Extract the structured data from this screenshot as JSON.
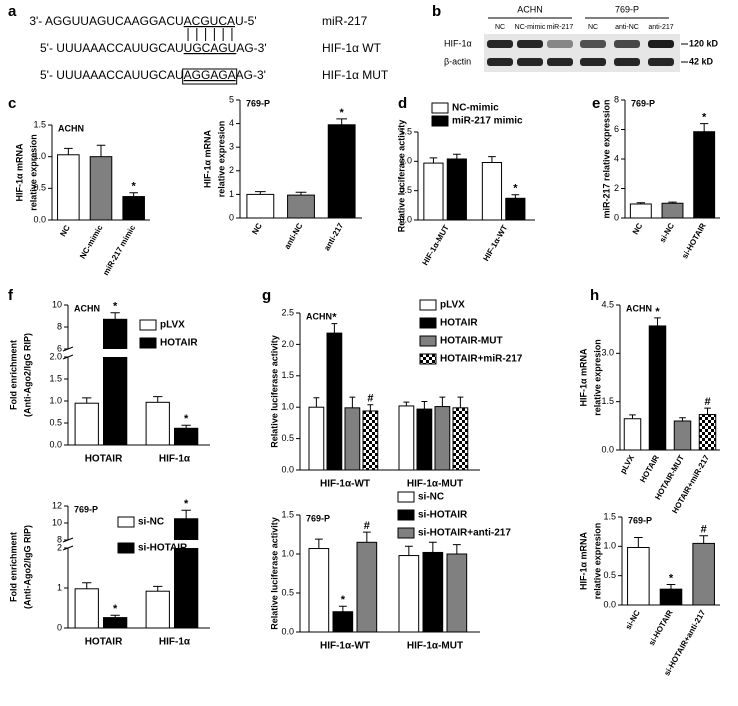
{
  "panel_labels": [
    "a",
    "b",
    "c",
    "d",
    "e",
    "f",
    "g",
    "h"
  ],
  "sequences": [
    {
      "prefix": "3'- AGGUUAGUCAAGGACU",
      "motif": "ACGUCA",
      "suffix": "U-5'",
      "label": "miR-217"
    },
    {
      "prefix": "5'- UUUAAACCAUUGCAU",
      "motif": "UGCAGU",
      "suffix": "AG-3'",
      "label": "HIF-1α WT"
    },
    {
      "prefix": "5'- UUUAAACCAUUGCAU",
      "motif": "AGGAGA",
      "suffix": "AG-3'",
      "label": "HIF-1α MUT"
    }
  ],
  "blot": {
    "groups": [
      "ACHN",
      "769-P"
    ],
    "lanes": [
      "NC",
      "NC-mimic",
      "miR-217",
      "NC",
      "anti-NC",
      "anti-217"
    ],
    "rows": [
      {
        "name": "HIF-1α",
        "size": "120 kD"
      },
      {
        "name": "β-actin",
        "size": "42 kD"
      }
    ]
  },
  "chart_data": [
    {
      "type": "bar",
      "title": "ACHN",
      "ylabel": [
        "HIF-1α mRNA",
        "relative expresion"
      ],
      "categories": [
        "NC",
        "NC-mimic",
        "miR-217 mimic"
      ],
      "values": [
        1.03,
        1.0,
        0.37
      ],
      "errors": [
        0.1,
        0.18,
        0.06
      ],
      "colors": [
        "#ffffff",
        "#808080",
        "#000000"
      ],
      "markers": [
        null,
        null,
        "*"
      ],
      "ylim": [
        0,
        1.5
      ],
      "yticks": [
        {
          "value": 0,
          "label": "0.0"
        },
        0.5,
        {
          "value": 1,
          "label": "1.0"
        },
        1.5
      ]
    },
    {
      "type": "bar",
      "title": "769-P",
      "ylabel": [
        "HIF-1α mRNA",
        "relative expresion"
      ],
      "categories": [
        "NC",
        "anti-NC",
        "anti-217"
      ],
      "values": [
        1.0,
        0.97,
        3.95
      ],
      "errors": [
        0.12,
        0.12,
        0.25
      ],
      "colors": [
        "#ffffff",
        "#808080",
        "#000000"
      ],
      "markers": [
        null,
        null,
        "*"
      ],
      "ylim": [
        0,
        5
      ],
      "yticks": [
        0,
        1,
        2,
        3,
        4,
        5
      ]
    },
    {
      "type": "bar",
      "ylabel": [
        "Relative luciferase activity"
      ],
      "categories": [
        "HIF-1α-MUT",
        "HIF-1α-WT"
      ],
      "series": [
        {
          "name": "NC-mimic",
          "color": "#ffffff",
          "values": [
            0.97,
            0.98
          ],
          "errors": [
            0.09,
            0.1
          ]
        },
        {
          "name": "miR-217 mimic",
          "color": "#000000",
          "values": [
            1.04,
            0.37
          ],
          "errors": [
            0.08,
            0.06
          ],
          "markers": [
            null,
            "*"
          ]
        }
      ],
      "ylim": [
        0,
        1.5
      ],
      "yticks": [
        {
          "value": 0,
          "label": "0.0"
        },
        0.5,
        {
          "value": 1,
          "label": "1.0"
        },
        1.5
      ]
    },
    {
      "type": "bar",
      "title": "769-P",
      "ylabel": [
        "miR-217 relative expression"
      ],
      "categories": [
        "NC",
        "si-NC",
        "si-HOTAIR"
      ],
      "values": [
        0.95,
        1.0,
        5.85
      ],
      "errors": [
        0.08,
        0.08,
        0.55
      ],
      "colors": [
        "#ffffff",
        "#808080",
        "#000000"
      ],
      "markers": [
        null,
        null,
        "*"
      ],
      "ylim": [
        0,
        8
      ],
      "yticks": [
        0,
        2,
        4,
        6,
        8
      ]
    },
    {
      "type": "bar",
      "title": "ACHN",
      "ylabel": [
        "Fold enrichment",
        "(Anti-Ago2/IgG RIP)"
      ],
      "categories": [
        "HOTAIR",
        "HIF-1α"
      ],
      "series": [
        {
          "name": "pLVX",
          "color": "#ffffff",
          "values": [
            0.95,
            0.97
          ],
          "errors": [
            0.12,
            0.13
          ]
        },
        {
          "name": "HOTAIR",
          "color": "#000000",
          "values": [
            8.7,
            0.38
          ],
          "errors": [
            0.6,
            0.07
          ],
          "markers": [
            "*",
            "*"
          ]
        }
      ],
      "ylim": [
        0,
        10
      ],
      "ybreak": [
        2,
        6
      ],
      "yticks": [
        {
          "value": 0,
          "label": "0.0"
        },
        0.5,
        {
          "value": 1,
          "label": "1.0"
        },
        1.5,
        {
          "value": 2,
          "label": "2.0"
        },
        6,
        8,
        10
      ]
    },
    {
      "type": "bar",
      "title": "769-P",
      "ylabel": [
        "Fold enrichment",
        "(Anti-Ago2/IgG RIP)"
      ],
      "categories": [
        "HOTAIR",
        "HIF-1α"
      ],
      "series": [
        {
          "name": "si-NC",
          "color": "#ffffff",
          "values": [
            0.98,
            0.92
          ],
          "errors": [
            0.15,
            0.12
          ]
        },
        {
          "name": "si-HOTAIR",
          "color": "#000000",
          "values": [
            0.26,
            10.5
          ],
          "errors": [
            0.06,
            1.0
          ],
          "markers": [
            "*",
            "*"
          ]
        }
      ],
      "ylim": [
        0,
        12
      ],
      "ybreak": [
        2,
        8
      ],
      "yticks": [
        0,
        1,
        2,
        8,
        10,
        12
      ]
    },
    {
      "type": "bar",
      "title": "ACHN",
      "ylabel": [
        "Relative luciferase activity"
      ],
      "categories": [
        "HIF-1α-WT",
        "HIF-1α-MUT"
      ],
      "series": [
        {
          "name": "pLVX",
          "color": "#ffffff",
          "values": [
            1.0,
            1.02
          ],
          "errors": [
            0.15,
            0.06
          ]
        },
        {
          "name": "HOTAIR",
          "color": "#000000",
          "values": [
            2.18,
            0.97
          ],
          "errors": [
            0.15,
            0.12
          ],
          "markers": [
            "*",
            null
          ]
        },
        {
          "name": "HOTAIR-MUT",
          "color": "#808080",
          "values": [
            0.99,
            1.01
          ],
          "errors": [
            0.17,
            0.15
          ]
        },
        {
          "name": "HOTAIR+miR-217",
          "color": "checker",
          "values": [
            0.94,
            0.99
          ],
          "errors": [
            0.1,
            0.17
          ],
          "markers": [
            "#",
            null
          ]
        }
      ],
      "ylim": [
        0,
        2.5
      ],
      "yticks": [
        {
          "value": 0,
          "label": "0.0"
        },
        0.5,
        {
          "value": 1,
          "label": "1.0"
        },
        1.5,
        {
          "value": 2,
          "label": "2.0"
        },
        2.5
      ]
    },
    {
      "type": "bar",
      "title": "769-P",
      "ylabel": [
        "Relative luciferase activity"
      ],
      "categories": [
        "HIF-1α-WT",
        "HIF-1α-MUT"
      ],
      "series": [
        {
          "name": "si-NC",
          "color": "#ffffff",
          "values": [
            1.07,
            0.98
          ],
          "errors": [
            0.12,
            0.12
          ]
        },
        {
          "name": "si-HOTAIR",
          "color": "#000000",
          "values": [
            0.26,
            1.02
          ],
          "errors": [
            0.07,
            0.13
          ],
          "markers": [
            "*",
            null
          ]
        },
        {
          "name": "si-HOTAIR+anti-217",
          "color": "#808080",
          "values": [
            1.15,
            1.0
          ],
          "errors": [
            0.13,
            0.12
          ],
          "markers": [
            "#",
            null
          ]
        }
      ],
      "ylim": [
        0,
        1.5
      ],
      "yticks": [
        {
          "value": 0,
          "label": "0.0"
        },
        0.5,
        {
          "value": 1,
          "label": "1.0"
        },
        1.5
      ]
    },
    {
      "type": "bar",
      "title": "ACHN",
      "ylabel": [
        "HIF-1α mRNA",
        "relative expresion"
      ],
      "categories": [
        "pLVX",
        "HOTAIR",
        "HOTAIR-MUT",
        "HOTAIR+miR-217"
      ],
      "values": [
        0.97,
        3.85,
        0.9,
        1.1
      ],
      "errors": [
        0.12,
        0.25,
        0.1,
        0.2
      ],
      "colors": [
        "#ffffff",
        "#000000",
        "#808080",
        "checker"
      ],
      "markers": [
        null,
        "*",
        null,
        "#"
      ],
      "ylim": [
        0,
        4.5
      ],
      "yticks": [
        {
          "value": 0,
          "label": "0.0"
        },
        1.5,
        {
          "value": 3,
          "label": "3.0"
        },
        4.5
      ]
    },
    {
      "type": "bar",
      "title": "769-P",
      "ylabel": [
        "HIF-1α mRNA",
        "relative expresion"
      ],
      "categories": [
        "si-NC",
        "si-HOTAIR",
        "si-HOTAIR+anti-217"
      ],
      "values": [
        0.98,
        0.27,
        1.05
      ],
      "errors": [
        0.17,
        0.08,
        0.13
      ],
      "colors": [
        "#ffffff",
        "#000000",
        "#808080"
      ],
      "markers": [
        null,
        "*",
        "#"
      ],
      "ylim": [
        0,
        1.5
      ],
      "yticks": [
        {
          "value": 0,
          "label": "0.0"
        },
        0.5,
        {
          "value": 1,
          "label": "1.0"
        },
        1.5
      ]
    }
  ]
}
